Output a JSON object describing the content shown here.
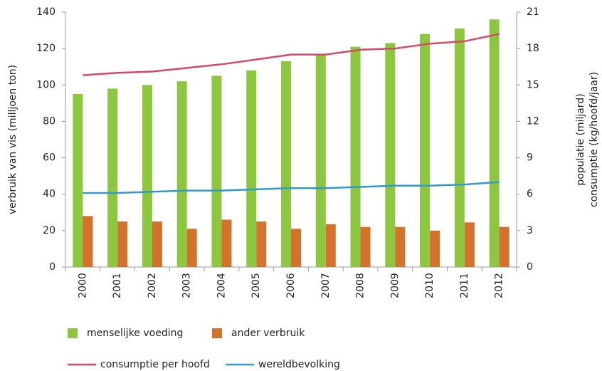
{
  "chart_data": {
    "type": "bar",
    "categories": [
      "2000",
      "2001",
      "2002",
      "2003",
      "2004",
      "2005",
      "2006",
      "2007",
      "2008",
      "2009",
      "2010",
      "2011",
      "2012"
    ],
    "ylabel": "verbruik van vis (milljoen ton)",
    "y2label": [
      "populatie (miljard)",
      "consumptie (kg/hoofd/jaar)"
    ],
    "ylim": [
      0,
      140
    ],
    "yticks": [
      0,
      20,
      40,
      60,
      80,
      100,
      120,
      140
    ],
    "y2lim": [
      0,
      21
    ],
    "y2ticks": [
      0,
      3,
      6,
      9,
      12,
      15,
      18,
      21
    ],
    "grid": false,
    "series": [
      {
        "name": "menselijke voeding",
        "type": "bar",
        "color": "#8dc63f",
        "values": [
          95,
          98,
          100,
          102,
          105,
          108,
          113,
          117,
          121,
          123,
          128,
          131,
          136
        ]
      },
      {
        "name": "ander verbruik",
        "type": "bar",
        "color": "#d4722d",
        "values": [
          28,
          25,
          25,
          21,
          26,
          25,
          21,
          23.5,
          22,
          22,
          20,
          24.5,
          22
        ]
      },
      {
        "name": "consumptie per hoofd",
        "type": "line",
        "axis": "y2",
        "color": "#d4496a",
        "values": [
          15.8,
          16.0,
          16.1,
          16.4,
          16.7,
          17.1,
          17.5,
          17.5,
          17.9,
          18.0,
          18.4,
          18.6,
          19.2
        ]
      },
      {
        "name": "wereldbevolking",
        "type": "line",
        "axis": "y2",
        "color": "#3399cc",
        "values": [
          6.1,
          6.1,
          6.2,
          6.3,
          6.3,
          6.4,
          6.5,
          6.5,
          6.6,
          6.7,
          6.7,
          6.8,
          7.0
        ]
      }
    ]
  }
}
